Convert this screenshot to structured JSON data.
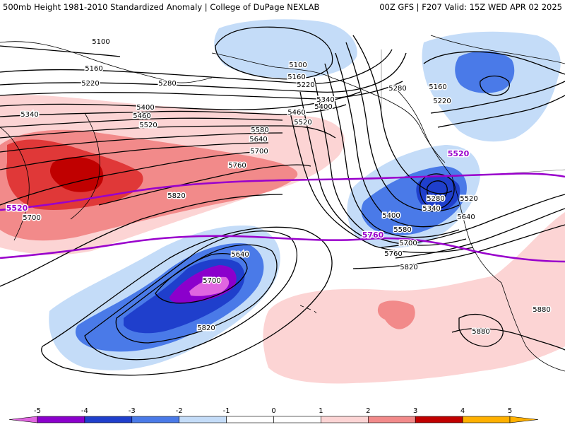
{
  "header": {
    "title": "500mb Height 1981-2010 Standardized Anomaly | College of DuPage NEXLAB",
    "run_info": "00Z GFS | F207 Valid: 15Z WED APR 02 2025"
  },
  "colors": {
    "neg_5": "#e066e0",
    "neg_4": "#8b00cc",
    "neg_3": "#1f3fcc",
    "neg_2": "#4a7ae8",
    "neg_1": "#c4dcf8",
    "zero": "#ffffff",
    "pos_1": "#fcd4d4",
    "pos_2": "#f28a8a",
    "pos_3": "#e03838",
    "pos_4": "#c00000",
    "pos_5": "#ffb000",
    "reference_contour": "#9900cc",
    "height_contour": "#000000"
  },
  "contour_labels": [
    {
      "id": "c5100a",
      "text": "5100"
    },
    {
      "id": "c5100b",
      "text": "5100"
    },
    {
      "id": "c5160a",
      "text": "5160"
    },
    {
      "id": "c5160b",
      "text": "5160"
    },
    {
      "id": "c5160c",
      "text": "5160"
    },
    {
      "id": "c5220a",
      "text": "5220"
    },
    {
      "id": "c5220b",
      "text": "5220"
    },
    {
      "id": "c5220c",
      "text": "5220"
    },
    {
      "id": "c5280a",
      "text": "5280"
    },
    {
      "id": "c5280b",
      "text": "5280"
    },
    {
      "id": "c5280c",
      "text": "5280"
    },
    {
      "id": "c5340a",
      "text": "5340"
    },
    {
      "id": "c5340b",
      "text": "5340"
    },
    {
      "id": "c5340c",
      "text": "5340"
    },
    {
      "id": "c5400a",
      "text": "5400"
    },
    {
      "id": "c5400b",
      "text": "5400"
    },
    {
      "id": "c5400c",
      "text": "5400"
    },
    {
      "id": "c5460a",
      "text": "5460"
    },
    {
      "id": "c5460b",
      "text": "5460"
    },
    {
      "id": "c5520a",
      "text": "5520"
    },
    {
      "id": "c5520b",
      "text": "5520"
    },
    {
      "id": "c5520c",
      "text": "5520"
    },
    {
      "id": "c5580a",
      "text": "5580"
    },
    {
      "id": "c5580b",
      "text": "5580"
    },
    {
      "id": "c5640a",
      "text": "5640"
    },
    {
      "id": "c5640b",
      "text": "5640"
    },
    {
      "id": "c5640c",
      "text": "5640"
    },
    {
      "id": "c5700a",
      "text": "5700"
    },
    {
      "id": "c5700b",
      "text": "5700"
    },
    {
      "id": "c5700c",
      "text": "5700"
    },
    {
      "id": "c5700d",
      "text": "5700"
    },
    {
      "id": "c5760a",
      "text": "5760"
    },
    {
      "id": "c5760b",
      "text": "5760"
    },
    {
      "id": "c5820a",
      "text": "5820"
    },
    {
      "id": "c5820b",
      "text": "5820"
    },
    {
      "id": "c5820c",
      "text": "5820"
    },
    {
      "id": "c5880a",
      "text": "5880"
    },
    {
      "id": "c5880b",
      "text": "5880"
    }
  ],
  "reference_labels": [
    {
      "id": "r5520a",
      "text": "5520"
    },
    {
      "id": "r5520b",
      "text": "5520"
    },
    {
      "id": "r5760a",
      "text": "5760"
    }
  ],
  "legend": {
    "ticks": [
      "-5",
      "-4",
      "-3",
      "-2",
      "-1",
      "0",
      "1",
      "2",
      "3",
      "4",
      "5"
    ]
  }
}
